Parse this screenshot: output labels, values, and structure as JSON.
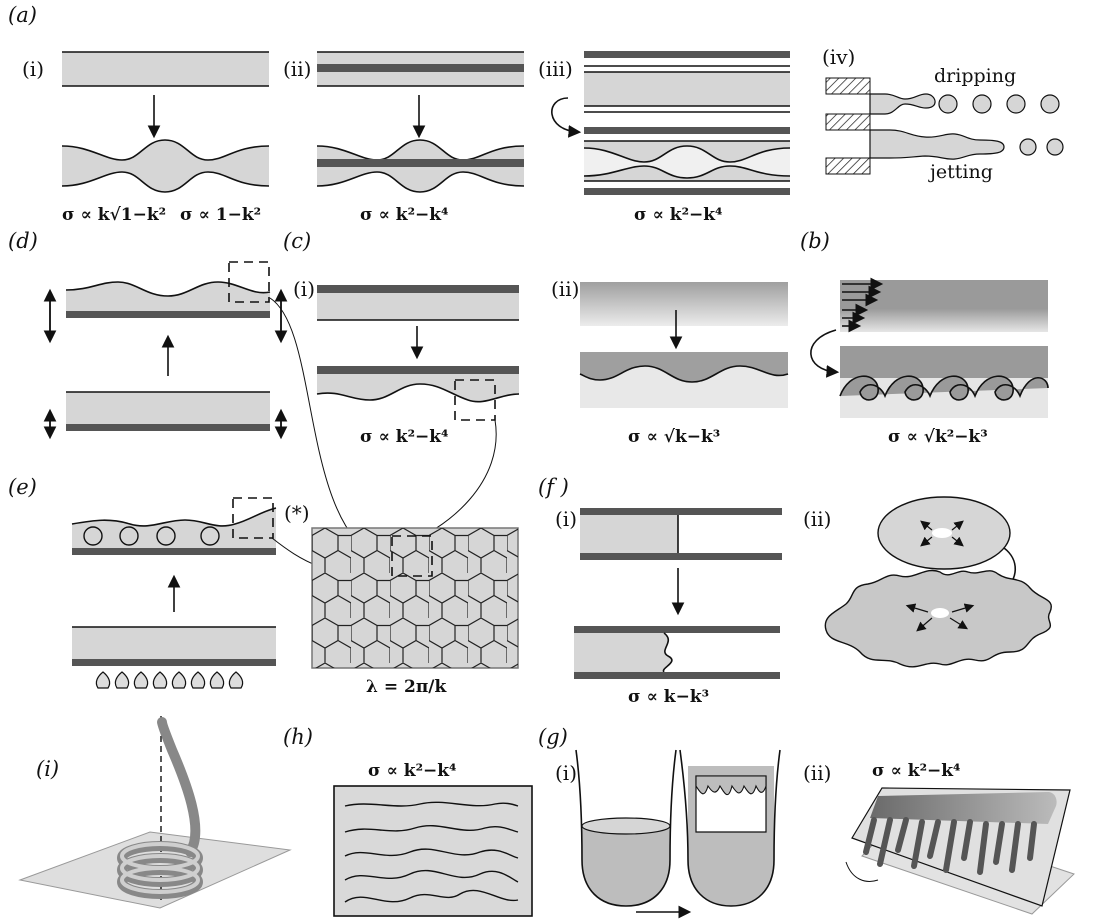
{
  "panel_labels": {
    "a": "(a)",
    "b": "(b)",
    "c": "(c)",
    "d": "(d)",
    "e": "(e)",
    "f": "(f )",
    "g": "(g)",
    "h": "(h)",
    "i": "(i)"
  },
  "sub_labels": {
    "a_i": "(i)",
    "a_ii": "(ii)",
    "a_iii": "(iii)",
    "a_iv": "(iv)",
    "c_i": "(i)",
    "c_ii": "(ii)",
    "e_star": "(*)",
    "f_i": "(i)",
    "f_ii": "(ii)",
    "g_i": "(i)",
    "g_ii": "(ii)"
  },
  "words": {
    "dripping": "dripping",
    "jetting": "jetting"
  },
  "equations": {
    "a_i_left": "σ ∝ k√1−k²",
    "a_i_right": "σ ∝ 1−k²",
    "a_ii": "σ ∝ k²−k⁴",
    "a_iii": "σ ∝ k²−k⁴",
    "c_i": "σ ∝ k²−k⁴",
    "c_ii": "σ ∝ √k−k³",
    "b": "σ ∝ √k²−k³",
    "hex": "λ = 2π/k",
    "f_i": "σ ∝ k−k³",
    "h": "σ ∝ k²−k⁴",
    "g_ii": "σ ∝ k²−k⁴"
  },
  "colors": {
    "film": "#d6d6d6",
    "substrate": "#555555",
    "line": "#111111"
  }
}
